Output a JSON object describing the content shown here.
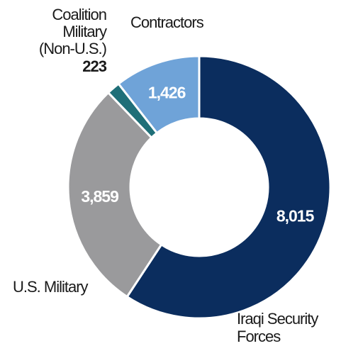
{
  "chart_data": {
    "type": "pie",
    "variant": "donut",
    "title": "",
    "slices": [
      {
        "label": "Iraqi Security Forces",
        "label_lines": [
          "Iraqi Security",
          "Forces"
        ],
        "value": 8015,
        "display_value": "8,015",
        "color": "#0b2d5e"
      },
      {
        "label": "U.S. Military",
        "label_lines": [
          "U.S. Military"
        ],
        "value": 3859,
        "display_value": "3,859",
        "color": "#9a9a9c"
      },
      {
        "label": "Coalition Military (Non-U.S.)",
        "label_lines": [
          "Coalition",
          "Military",
          "(Non-U.S.)"
        ],
        "value": 223,
        "display_value": "223",
        "color": "#1f6f78"
      },
      {
        "label": "Contractors",
        "label_lines": [
          "Contractors"
        ],
        "value": 1426,
        "display_value": "1,426",
        "color": "#6fa3d8"
      }
    ]
  }
}
